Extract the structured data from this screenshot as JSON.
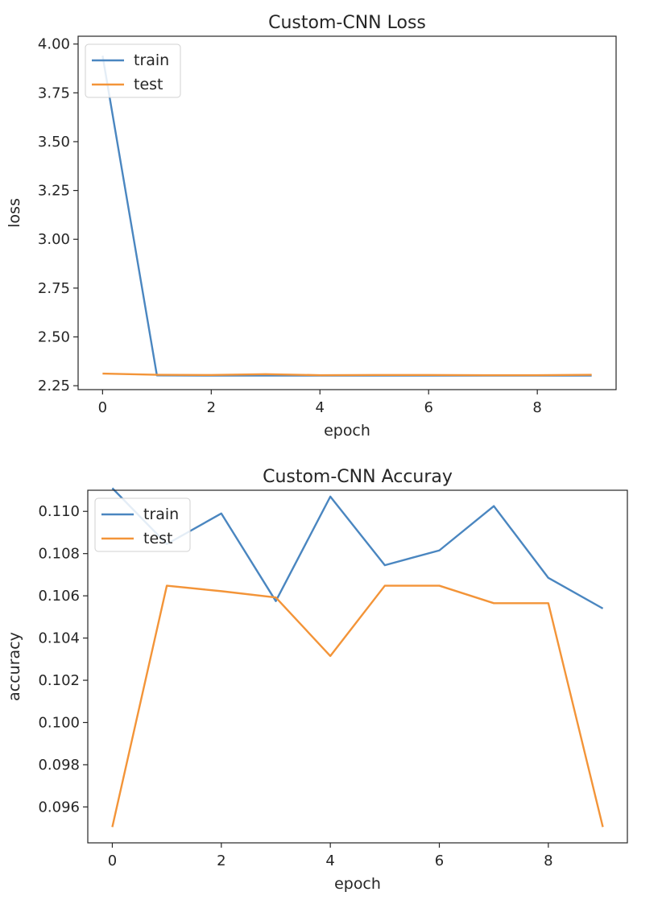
{
  "chart_data": [
    {
      "type": "line",
      "title": "Custom-CNN Loss",
      "xlabel": "epoch",
      "ylabel": "loss",
      "x": [
        0,
        1,
        2,
        3,
        4,
        5,
        6,
        7,
        8,
        9
      ],
      "xticks": [
        "0",
        "2",
        "4",
        "6",
        "8"
      ],
      "yticks": [
        "2.25",
        "2.50",
        "2.75",
        "3.00",
        "3.25",
        "3.50",
        "3.75",
        "4.00"
      ],
      "xlim": [
        -0.45,
        9.45
      ],
      "ylim": [
        2.23,
        4.04
      ],
      "grid": false,
      "legend_position": "upper left",
      "series": [
        {
          "name": "train",
          "color": "#4a86c0",
          "values": [
            3.94,
            2.303,
            2.302,
            2.302,
            2.302,
            2.302,
            2.302,
            2.302,
            2.302,
            2.302
          ]
        },
        {
          "name": "test",
          "color": "#f39438",
          "values": [
            2.312,
            2.306,
            2.305,
            2.309,
            2.304,
            2.305,
            2.305,
            2.304,
            2.304,
            2.306
          ]
        }
      ]
    },
    {
      "type": "line",
      "title": "Custom-CNN Accuray",
      "xlabel": "epoch",
      "ylabel": "accuracy",
      "x": [
        0,
        1,
        2,
        3,
        4,
        5,
        6,
        7,
        8,
        9
      ],
      "xticks": [
        "0",
        "2",
        "4",
        "6",
        "8"
      ],
      "yticks": [
        "0.096",
        "0.098",
        "0.100",
        "0.102",
        "0.104",
        "0.106",
        "0.108",
        "0.110"
      ],
      "xlim": [
        -0.45,
        9.45
      ],
      "ylim": [
        0.0943,
        0.111
      ],
      "grid": false,
      "legend_position": "upper left",
      "series": [
        {
          "name": "train",
          "color": "#4a86c0",
          "values": [
            0.1111,
            0.10845,
            0.1099,
            0.10575,
            0.1107,
            0.10745,
            0.10815,
            0.11025,
            0.10685,
            0.1054
          ]
        },
        {
          "name": "test",
          "color": "#f39438",
          "values": [
            0.09505,
            0.10648,
            0.10622,
            0.10592,
            0.10315,
            0.10648,
            0.10648,
            0.10565,
            0.10565,
            0.09505
          ]
        }
      ]
    }
  ]
}
